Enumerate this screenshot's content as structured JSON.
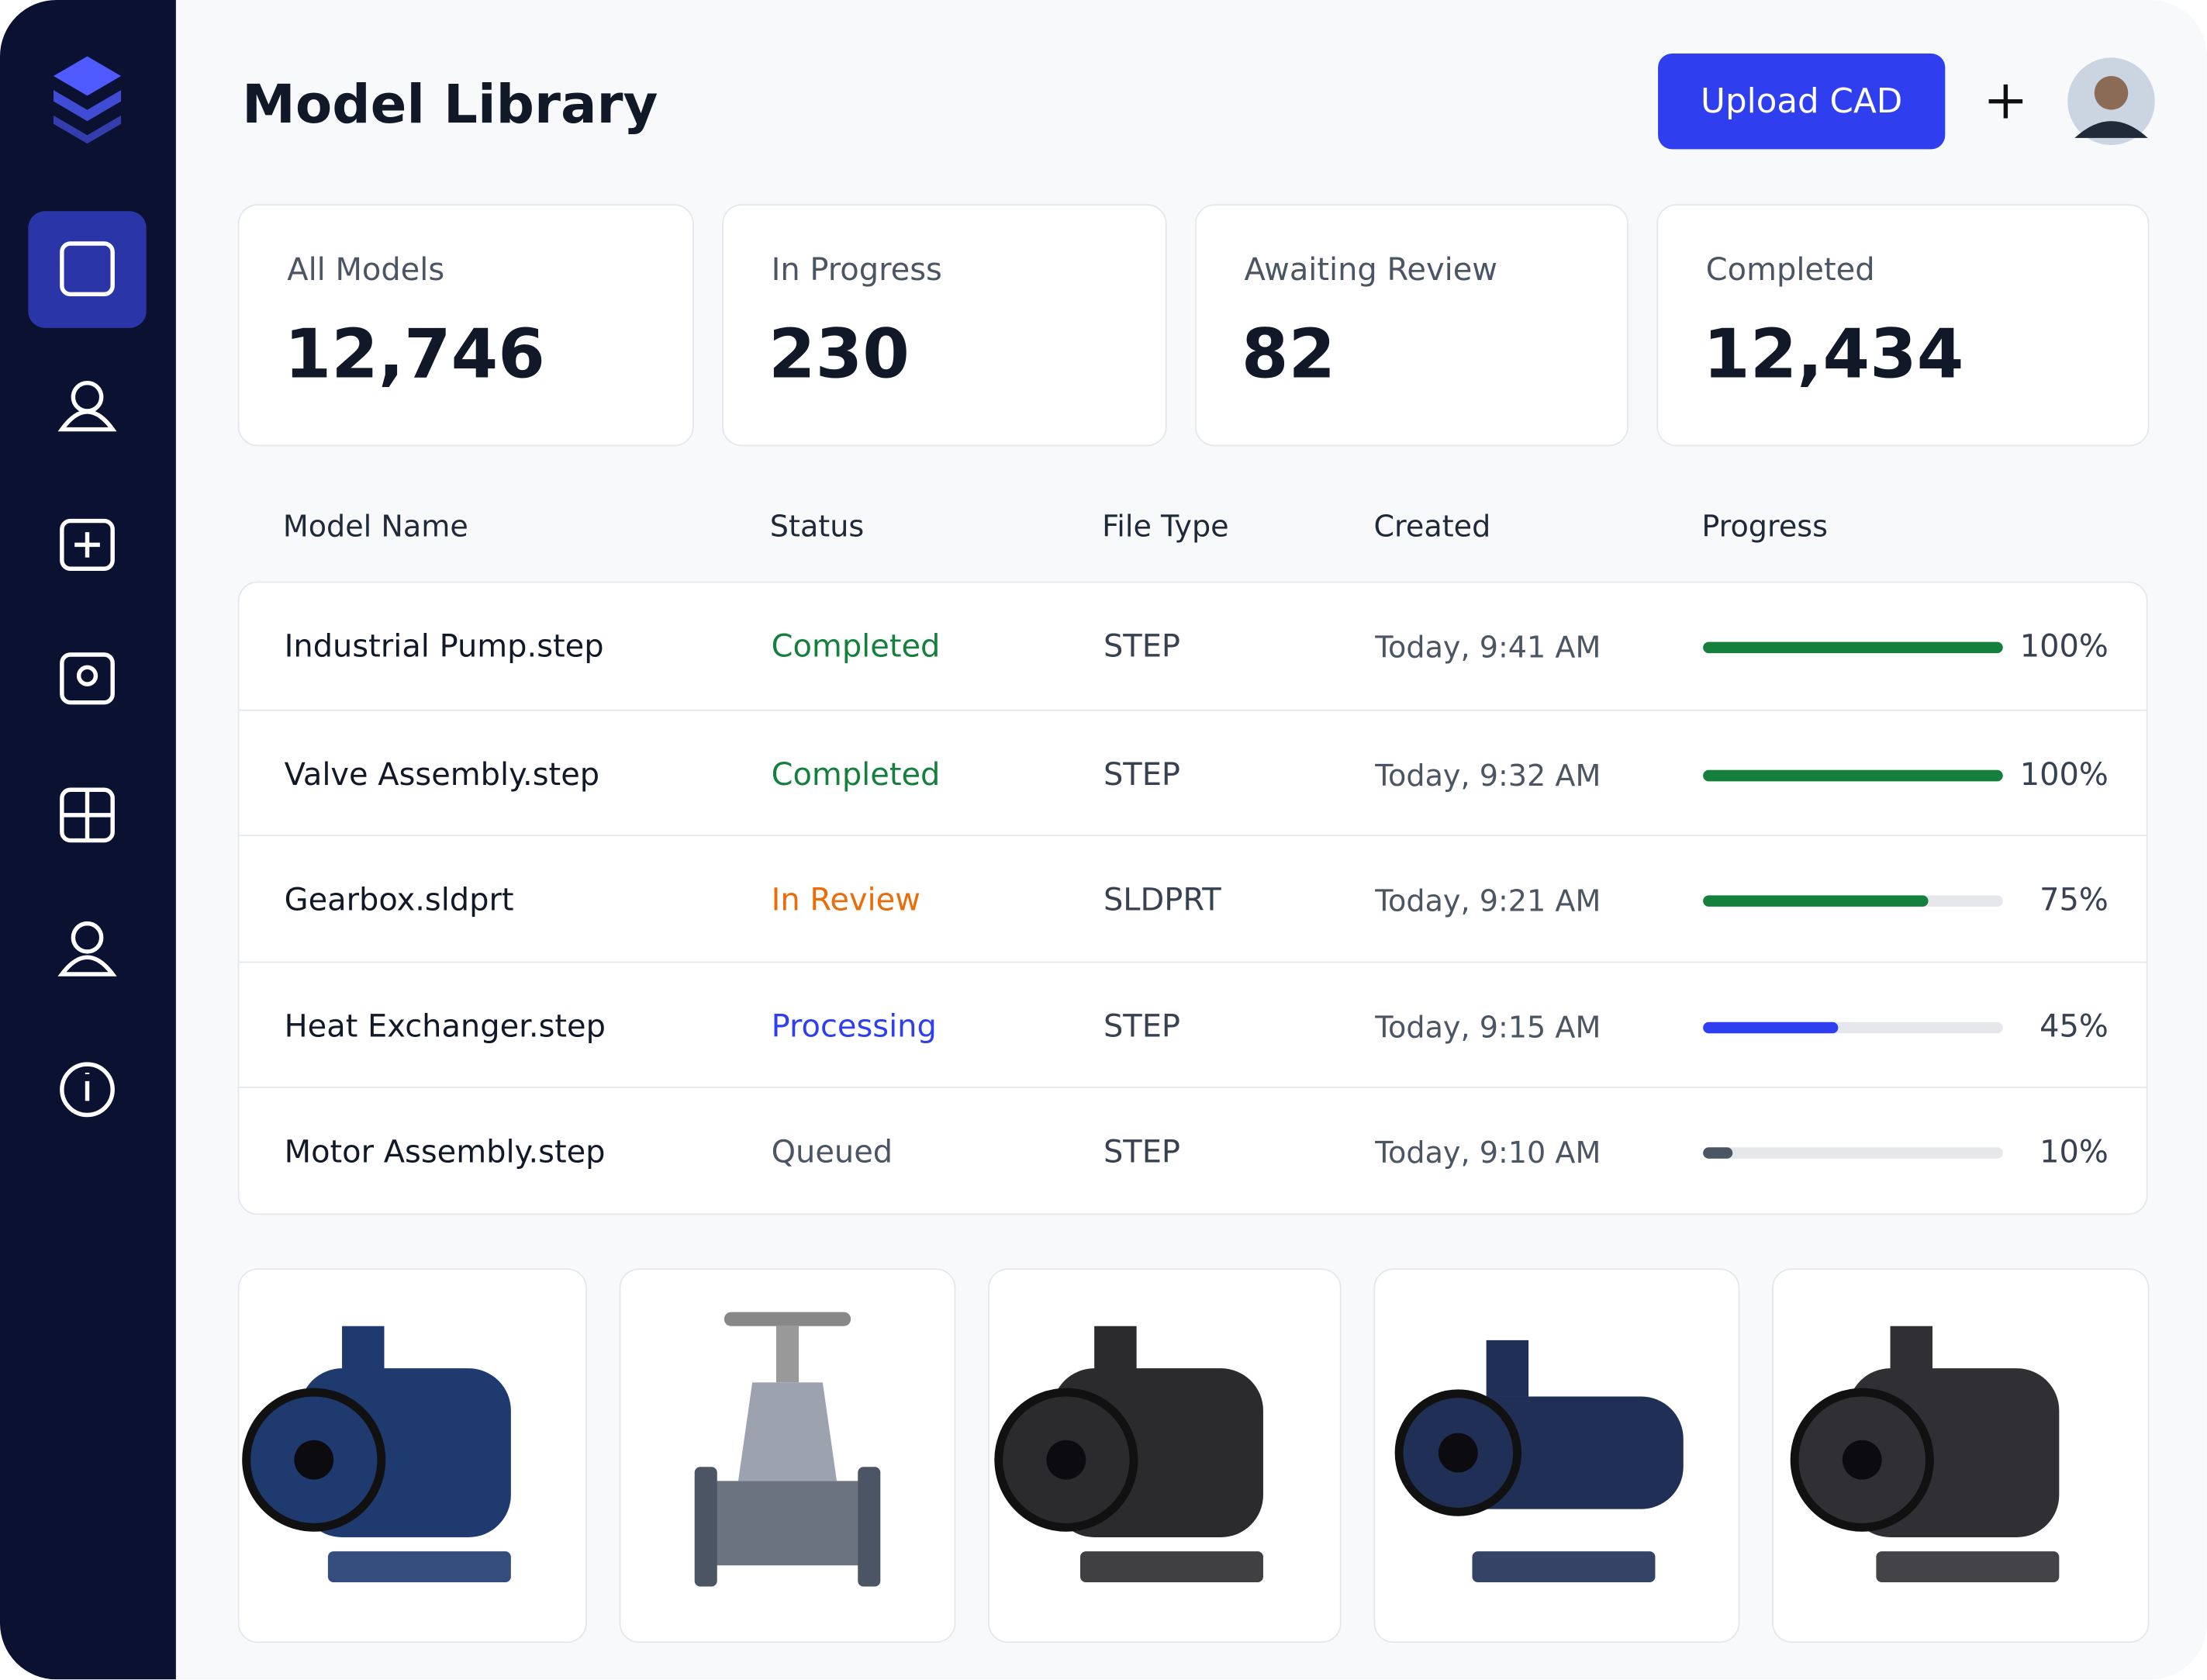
{
  "header": {
    "title": "Model Library",
    "button": "Upload CAD"
  },
  "stats": [
    {
      "label": "All Models",
      "value": "12,746"
    },
    {
      "label": "In Progress",
      "value": "230"
    },
    {
      "label": "Awaiting Review",
      "value": "82"
    },
    {
      "label": "Completed",
      "value": "12,434"
    }
  ],
  "table": {
    "columns": [
      "Model Name",
      "Status",
      "File Type",
      "Created",
      "Progress"
    ],
    "rows": [
      {
        "name": "Industrial Pump.step",
        "status": "Completed",
        "status_color": "#15803d",
        "file_type": "STEP",
        "created": "Today, 9:41 AM",
        "progress": 100,
        "progress_label": "100%",
        "bar_color": "#15803d"
      },
      {
        "name": "Valve Assembly.step",
        "status": "Completed",
        "status_color": "#15803d",
        "file_type": "STEP",
        "created": "Today, 9:32 AM",
        "progress": 100,
        "progress_label": "100%",
        "bar_color": "#15803d"
      },
      {
        "name": "Gearbox.sldprt",
        "status": "In Review",
        "status_color": "#ea6c0a",
        "file_type": "SLDPRT",
        "created": "Today, 9:21 AM",
        "progress": 75,
        "progress_label": "75%",
        "bar_color": "#15803d"
      },
      {
        "name": "Heat Exchanger.step",
        "status": "Processing",
        "status_color": "#2f3ff0",
        "file_type": "STEP",
        "created": "Today, 9:15 AM",
        "progress": 45,
        "progress_label": "45%",
        "bar_color": "#2f3ff0"
      },
      {
        "name": "Motor Assembly.step",
        "status": "Queued",
        "status_color": "#4b5563",
        "file_type": "STEP",
        "created": "Today, 9:10 AM",
        "progress": 10,
        "progress_label": "10%",
        "bar_color": "#4b5563"
      }
    ]
  }
}
